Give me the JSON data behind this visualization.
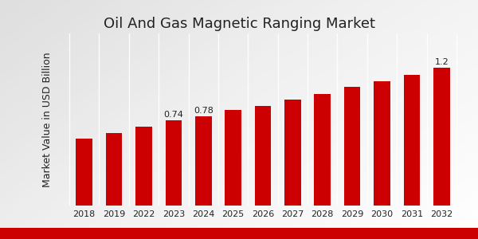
{
  "title": "Oil And Gas Magnetic Ranging Market",
  "ylabel": "Market Value in USD Billion",
  "categories": [
    "2018",
    "2019",
    "2022",
    "2023",
    "2024",
    "2025",
    "2026",
    "2027",
    "2028",
    "2029",
    "2030",
    "2031",
    "2032"
  ],
  "values": [
    0.58,
    0.635,
    0.69,
    0.74,
    0.78,
    0.835,
    0.87,
    0.925,
    0.975,
    1.035,
    1.085,
    1.14,
    1.2
  ],
  "bar_color": "#CC0000",
  "annotated": {
    "2023": "0.74",
    "2024": "0.78",
    "2032": "1.2"
  },
  "title_fontsize": 13,
  "ylabel_fontsize": 9,
  "tick_fontsize": 8,
  "annotation_fontsize": 8,
  "ylim": [
    0,
    1.5
  ],
  "bar_width": 0.55,
  "bottom_bar_color": "#CC0000"
}
